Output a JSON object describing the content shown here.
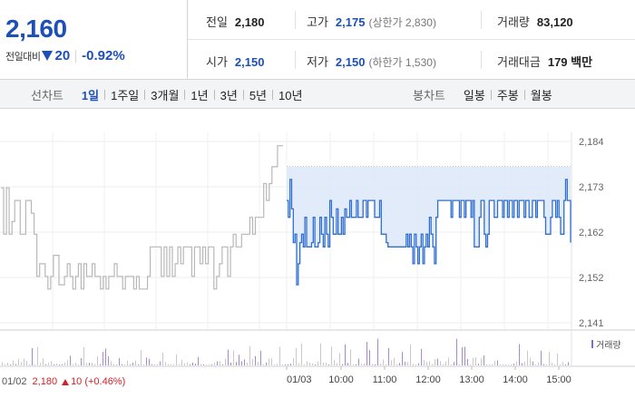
{
  "quote": {
    "price": "2,160",
    "change_label": "전일대비",
    "change_abs": "20",
    "change_pct": "-0.92%",
    "direction": "down",
    "down_color": "#1d4fb8",
    "up_color": "#d0222a"
  },
  "stats": {
    "prev_close": {
      "label": "전일",
      "value": "2,180"
    },
    "high": {
      "label": "고가",
      "value": "2,175",
      "sub": "(상한가 2,830)"
    },
    "volume": {
      "label": "거래량",
      "value": "83,120"
    },
    "open": {
      "label": "시가",
      "value": "2,150"
    },
    "low": {
      "label": "저가",
      "value": "2,150",
      "sub": "(하한가 1,530)"
    },
    "turnover": {
      "label": "거래대금",
      "value": "179 백만"
    }
  },
  "tabs": {
    "line_title": "선차트",
    "line_items": [
      "1일",
      "1주일",
      "3개월",
      "1년",
      "3년",
      "5년",
      "10년"
    ],
    "line_active": "1일",
    "candle_title": "봉차트",
    "candle_items": [
      "일봉",
      "주봉",
      "월봉"
    ]
  },
  "chart_data": {
    "type": "line",
    "y_ticks": [
      "2,184",
      "2,173",
      "2,162",
      "2,152",
      "2,141"
    ],
    "ylim": [
      2141,
      2184
    ],
    "x_tick_labels": [
      "01/02",
      "01/03",
      "10:00",
      "11:00",
      "12:00",
      "13:00",
      "14:00",
      "15:00"
    ],
    "legend": "거래량",
    "grid": true,
    "series": [
      {
        "day": "01/02",
        "color": "#b8b8b8",
        "values": [
          2173,
          2162,
          2173,
          2162,
          2165,
          2170,
          2170,
          2162,
          2162,
          2170,
          2170,
          2167,
          2162,
          2152,
          2155,
          2155,
          2152,
          2149,
          2152,
          2157,
          2157,
          2150,
          2150,
          2152,
          2155,
          2152,
          2149,
          2152,
          2155,
          2149,
          2155,
          2152,
          2152,
          2155,
          2152,
          2152,
          2149,
          2152,
          2149,
          2152,
          2152,
          2155,
          2152,
          2152,
          2149,
          2152,
          2152,
          2152,
          2149,
          2152,
          2149,
          2149,
          2149,
          2152,
          2159,
          2159,
          2159,
          2159,
          2152,
          2159,
          2152,
          2159,
          2152,
          2155,
          2159,
          2155,
          2159,
          2159,
          2159,
          2152,
          2159,
          2159,
          2155,
          2159,
          2155,
          2159,
          2159,
          2149,
          2152,
          2155,
          2159,
          2159,
          2152,
          2159,
          2162,
          2159,
          2159,
          2162,
          2162,
          2162,
          2166,
          2162,
          2166,
          2166,
          2166,
          2174,
          2170,
          2174,
          2178,
          2178,
          2183,
          2183,
          2183
        ]
      },
      {
        "day": "01/03",
        "color": "#2f6fd0",
        "values": [
          2170,
          2166,
          2175,
          2168,
          2160,
          2162,
          2150,
          2155,
          2160,
          2162,
          2159,
          2166,
          2159,
          2159,
          2159,
          2160,
          2166,
          2159,
          2159,
          2160,
          2166,
          2162,
          2159,
          2166,
          2162,
          2159,
          2170,
          2166,
          2162,
          2162,
          2168,
          2162,
          2162,
          2166,
          2162,
          2168,
          2166,
          2166,
          2170,
          2166,
          2166,
          2166,
          2170,
          2166,
          2166,
          2166,
          2170,
          2170,
          2166,
          2170,
          2170,
          2170,
          2170,
          2166,
          2166,
          2166,
          2170,
          2162,
          2162,
          2162,
          2160,
          2159,
          2159,
          2159,
          2159,
          2159,
          2159,
          2159,
          2159,
          2159,
          2159,
          2159,
          2162,
          2159,
          2162,
          2159,
          2155,
          2162,
          2159,
          2155,
          2159,
          2162,
          2155,
          2159,
          2162,
          2159,
          2166,
          2162,
          2159,
          2155,
          2166,
          2170,
          2170,
          2170,
          2170,
          2170,
          2170,
          2170,
          2170,
          2166,
          2170,
          2170,
          2170,
          2170,
          2166,
          2170,
          2170,
          2166,
          2170,
          2170,
          2170,
          2166,
          2170,
          2159,
          2159,
          2159,
          2166,
          2170,
          2170,
          2162,
          2159,
          2162,
          2170,
          2170,
          2170,
          2166,
          2166,
          2170,
          2170,
          2170,
          2166,
          2170,
          2170,
          2166,
          2170,
          2170,
          2166,
          2170,
          2170,
          2166,
          2170,
          2170,
          2170,
          2166,
          2170,
          2170,
          2166,
          2166,
          2170,
          2170,
          2166,
          2170,
          2170,
          2170,
          2170,
          2166,
          2162,
          2162,
          2162,
          2166,
          2170,
          2170,
          2166,
          2170,
          2166,
          2162,
          2162,
          2170,
          2175,
          2170,
          2170,
          2160
        ]
      }
    ],
    "prev_high_ref": 2178
  },
  "footer": {
    "date": "01/02",
    "price": "2,180",
    "change": "10",
    "pct": "(+0.46%)"
  }
}
